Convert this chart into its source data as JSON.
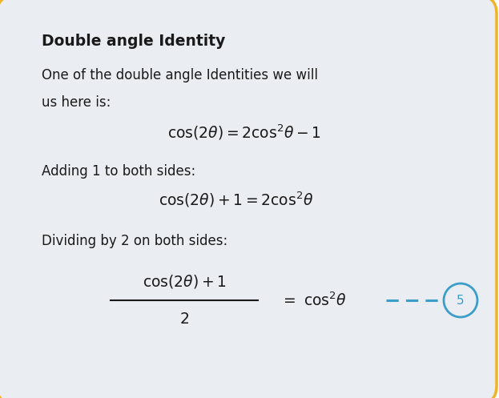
{
  "title": "Double angle Identity",
  "bg_color": "#eaedf2",
  "border_color": "#f0b429",
  "text_color": "#1a1a1a",
  "line1": "One of the double angle Identities we will",
  "line2": "us here is:",
  "label_add": "Adding 1 to both sides:",
  "label_div": "Dividing by 2 on both sides:",
  "dash_color": "#3b9ec9",
  "circle_color": "#3b9ec9",
  "circle_number": "5",
  "fig_width": 6.23,
  "fig_height": 4.97,
  "dpi": 100
}
